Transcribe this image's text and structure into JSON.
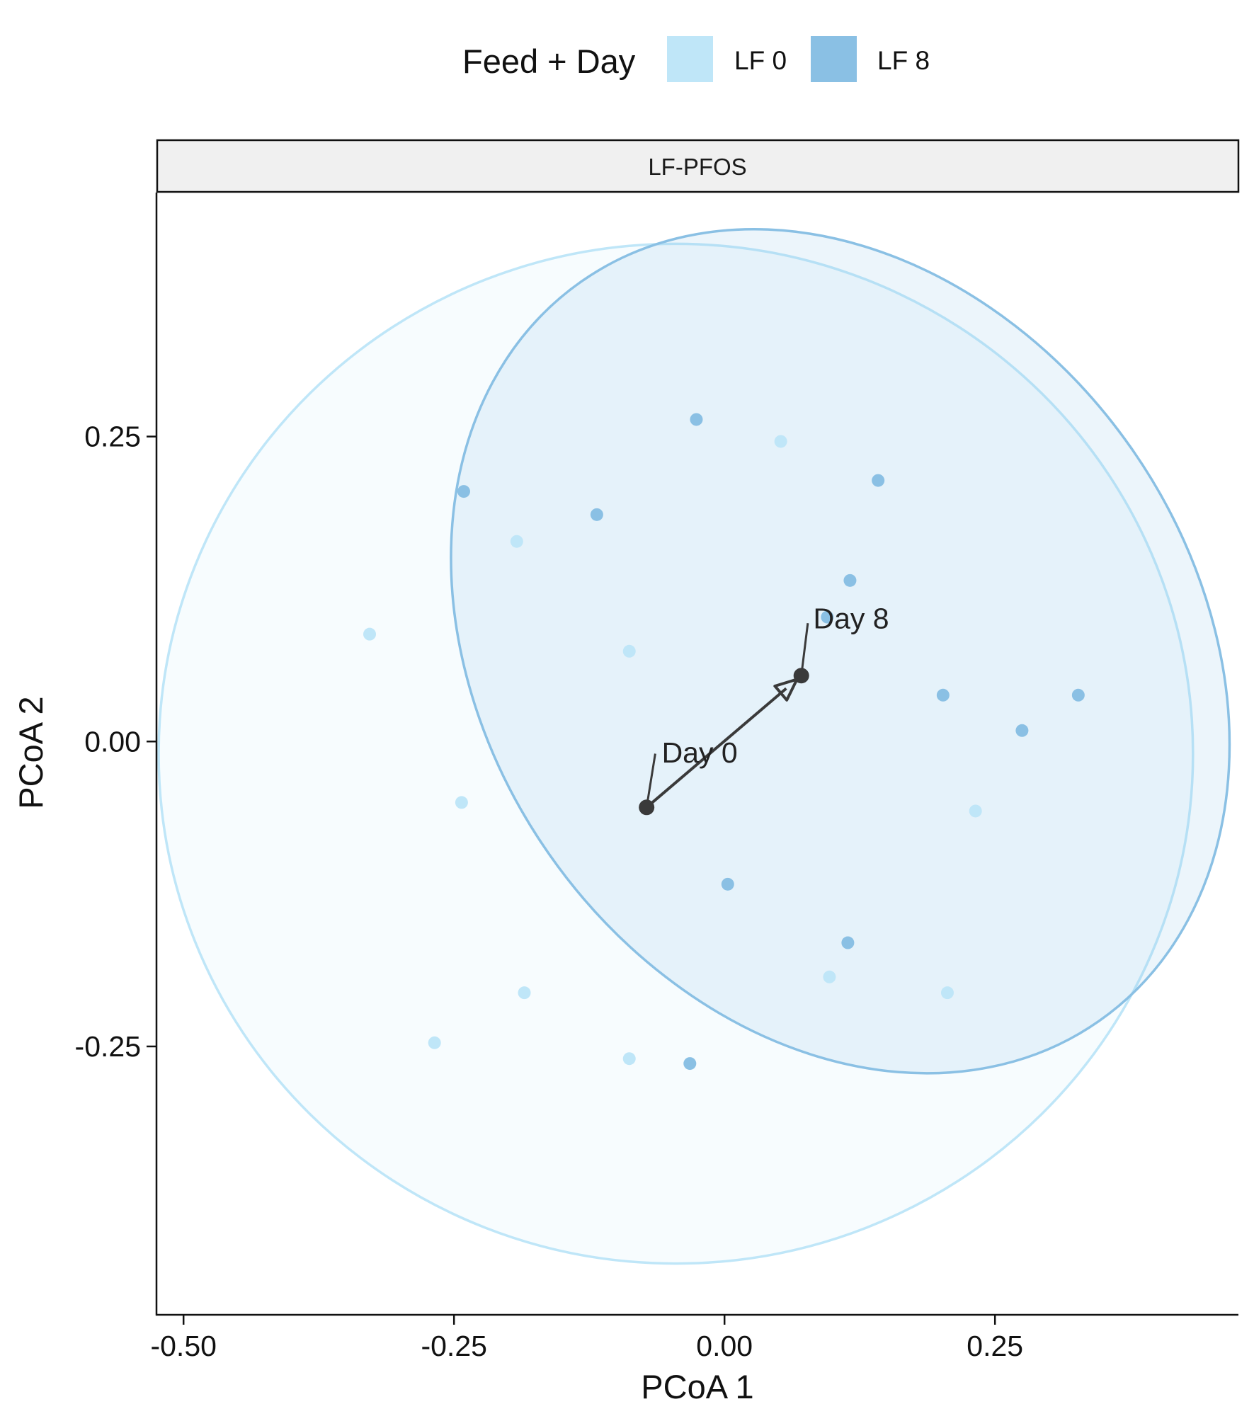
{
  "chart_data": {
    "type": "scatter",
    "facet_title": "LF-PFOS",
    "xlabel": "PCoA 1",
    "ylabel": "PCoA 2",
    "xlim": [
      -0.525,
      0.475
    ],
    "ylim": [
      -0.47,
      0.45
    ],
    "x_ticks": [
      -0.5,
      -0.25,
      0.0,
      0.25
    ],
    "x_tick_labels": [
      "-0.50",
      "-0.25",
      "0.00",
      "0.25"
    ],
    "y_ticks": [
      -0.25,
      0.0,
      0.25
    ],
    "y_tick_labels": [
      "-0.25",
      "0.00",
      "0.25"
    ],
    "grid": false,
    "legend": {
      "title": "Feed + Day",
      "position": "top",
      "entries": [
        {
          "label": "LF 0",
          "color": "#bfe6f8"
        },
        {
          "label": "LF 8",
          "color": "#8ac0e4"
        }
      ]
    },
    "series": [
      {
        "name": "LF 0",
        "color": "#bfe6f8",
        "points": [
          [
            0.052,
            0.246
          ],
          [
            -0.192,
            0.164
          ],
          [
            -0.328,
            0.088
          ],
          [
            -0.088,
            0.074
          ],
          [
            -0.243,
            -0.05
          ],
          [
            0.232,
            -0.057
          ],
          [
            0.097,
            -0.193
          ],
          [
            0.206,
            -0.206
          ],
          [
            -0.185,
            -0.206
          ],
          [
            -0.268,
            -0.247
          ],
          [
            -0.088,
            -0.26
          ]
        ],
        "ellipse": {
          "center": [
            -0.045,
            -0.01
          ],
          "radius_x": 0.478,
          "radius_y": 0.418,
          "rotation_deg": 0
        }
      },
      {
        "name": "LF 8",
        "color": "#8ac0e4",
        "points": [
          [
            -0.026,
            0.264
          ],
          [
            0.142,
            0.214
          ],
          [
            -0.241,
            0.205
          ],
          [
            -0.118,
            0.186
          ],
          [
            0.116,
            0.132
          ],
          [
            0.095,
            0.102
          ],
          [
            0.202,
            0.038
          ],
          [
            0.327,
            0.038
          ],
          [
            0.275,
            0.009
          ],
          [
            0.003,
            -0.117
          ],
          [
            0.114,
            -0.165
          ],
          [
            -0.032,
            -0.264
          ]
        ],
        "ellipse": {
          "center": [
            0.107,
            0.074
          ],
          "radius_x": 0.328,
          "radius_y": 0.37,
          "rotation_deg": -35
        }
      }
    ],
    "centroids": [
      {
        "label": "Day 0",
        "x": -0.072,
        "y": -0.054,
        "label_x": -0.058,
        "label_y": -0.009,
        "leader_x": -0.064,
        "leader_y": -0.01
      },
      {
        "label": "Day 8",
        "x": 0.071,
        "y": 0.054,
        "label_x": 0.082,
        "label_y": 0.101,
        "leader_x": 0.077,
        "leader_y": 0.097
      }
    ],
    "trajectory": {
      "from": "Day 0",
      "to": "Day 8",
      "color": "#3a3a3a"
    }
  }
}
